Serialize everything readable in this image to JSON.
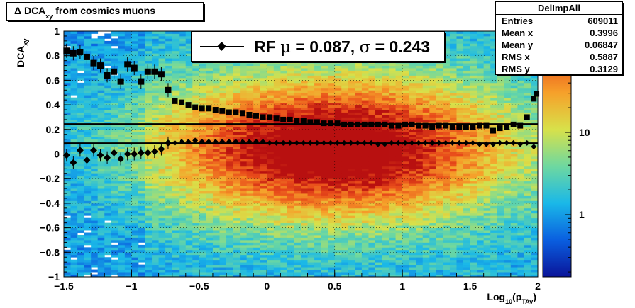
{
  "title": {
    "prefix": "Δ DCA",
    "sub": "xy",
    "suffix": " from cosmics muons"
  },
  "stats": {
    "name": "DelImpAll",
    "rows": [
      {
        "label": "Entries",
        "value": "609011"
      },
      {
        "label": "Mean x",
        "value": "0.3996"
      },
      {
        "label": "Mean y",
        "value": "0.06847"
      },
      {
        "label": "RMS x",
        "value": "0.5887"
      },
      {
        "label": "RMS y",
        "value": "0.3129"
      }
    ]
  },
  "legend": {
    "text_rf": "RF ",
    "mu_sym": "μ",
    "text_eq1": " =  0.087, ",
    "sigma_sym": "σ",
    "text_eq2": " =   0.243"
  },
  "axes": {
    "ylabel_main": "DCA",
    "ylabel_sub": "xy",
    "xlabel_main": "Log",
    "xlabel_sub": "10",
    "xlabel_paren_open": "(p",
    "xlabel_psub": "TAv",
    "xlabel_paren_close": ")"
  },
  "chart_data": {
    "type": "heatmap",
    "xlim": [
      -1.5,
      2
    ],
    "ylim": [
      -1,
      1
    ],
    "x_ticks": [
      "−1.5",
      "−1",
      "−0.5",
      "0",
      "0.5",
      "1",
      "1.5",
      "2"
    ],
    "x_tick_values": [
      -1.5,
      -1,
      -0.5,
      0,
      0.5,
      1,
      1.5,
      2
    ],
    "y_ticks": [
      "−1",
      "−0.8",
      "−0.6",
      "−0.4",
      "−0.2",
      "0",
      "0.2",
      "0.4",
      "0.6",
      "0.8",
      "1"
    ],
    "y_tick_values": [
      -1,
      -0.8,
      -0.6,
      -0.4,
      -0.2,
      0,
      0.2,
      0.4,
      0.6,
      0.8,
      1
    ],
    "color_scale": "log",
    "color_ticks": [
      "1",
      "10"
    ],
    "color_tick_values": [
      1,
      10
    ],
    "grid": true,
    "density_center": {
      "x": 0.5,
      "y": 0.05
    },
    "mean_line_y": 0.087,
    "sigma_line_y": 0.243,
    "mean_points": {
      "x": [
        -1.48,
        -1.43,
        -1.38,
        -1.33,
        -1.28,
        -1.23,
        -1.18,
        -1.13,
        -1.08,
        -1.03,
        -0.98,
        -0.93,
        -0.88,
        -0.83,
        -0.78,
        -0.73,
        -0.68,
        -0.63,
        -0.58,
        -0.53,
        -0.48,
        -0.43,
        -0.38,
        -0.33,
        -0.28,
        -0.23,
        -0.18,
        -0.13,
        -0.08,
        -0.03,
        0.02,
        0.07,
        0.12,
        0.17,
        0.22,
        0.27,
        0.32,
        0.37,
        0.42,
        0.47,
        0.52,
        0.57,
        0.62,
        0.67,
        0.72,
        0.77,
        0.82,
        0.87,
        0.92,
        0.97,
        1.02,
        1.07,
        1.12,
        1.17,
        1.22,
        1.27,
        1.32,
        1.37,
        1.42,
        1.47,
        1.52,
        1.57,
        1.62,
        1.67,
        1.72,
        1.77,
        1.82,
        1.87,
        1.92,
        1.97
      ],
      "y": [
        -0.01,
        -0.07,
        0.03,
        -0.05,
        0.03,
        -0.01,
        -0.03,
        0.01,
        -0.04,
        0.0,
        0.0,
        0.01,
        0.01,
        0.02,
        0.04,
        0.09,
        0.09,
        0.1,
        0.1,
        0.11,
        0.1,
        0.1,
        0.1,
        0.1,
        0.1,
        0.1,
        0.1,
        0.1,
        0.1,
        0.1,
        0.09,
        0.09,
        0.09,
        0.09,
        0.09,
        0.09,
        0.09,
        0.09,
        0.09,
        0.09,
        0.09,
        0.09,
        0.09,
        0.09,
        0.09,
        0.09,
        0.08,
        0.08,
        0.09,
        0.09,
        0.09,
        0.09,
        0.09,
        0.09,
        0.09,
        0.09,
        0.09,
        0.09,
        0.09,
        0.09,
        0.09,
        0.08,
        0.08,
        0.08,
        0.09,
        0.09,
        0.09,
        0.08,
        0.09,
        0.06
      ]
    },
    "sigma_points": {
      "x": [
        -1.48,
        -1.43,
        -1.38,
        -1.33,
        -1.28,
        -1.23,
        -1.18,
        -1.13,
        -1.08,
        -1.03,
        -0.98,
        -0.93,
        -0.88,
        -0.83,
        -0.78,
        -0.73,
        -0.68,
        -0.63,
        -0.58,
        -0.53,
        -0.48,
        -0.43,
        -0.38,
        -0.33,
        -0.28,
        -0.23,
        -0.18,
        -0.13,
        -0.08,
        -0.03,
        0.02,
        0.07,
        0.12,
        0.17,
        0.22,
        0.27,
        0.32,
        0.37,
        0.42,
        0.47,
        0.52,
        0.57,
        0.62,
        0.67,
        0.72,
        0.77,
        0.82,
        0.87,
        0.92,
        0.97,
        1.02,
        1.07,
        1.12,
        1.17,
        1.22,
        1.27,
        1.32,
        1.37,
        1.42,
        1.47,
        1.52,
        1.57,
        1.62,
        1.67,
        1.72,
        1.77,
        1.82,
        1.87,
        1.92,
        1.97
      ],
      "y": [
        0.84,
        0.82,
        0.83,
        0.79,
        0.74,
        0.72,
        0.64,
        0.67,
        0.59,
        0.73,
        0.7,
        0.59,
        0.67,
        0.67,
        0.65,
        0.52,
        0.43,
        0.42,
        0.4,
        0.38,
        0.37,
        0.37,
        0.36,
        0.35,
        0.34,
        0.34,
        0.33,
        0.32,
        0.31,
        0.3,
        0.3,
        0.29,
        0.28,
        0.28,
        0.27,
        0.27,
        0.26,
        0.26,
        0.25,
        0.25,
        0.25,
        0.24,
        0.24,
        0.24,
        0.24,
        0.24,
        0.24,
        0.24,
        0.23,
        0.23,
        0.24,
        0.24,
        0.23,
        0.23,
        0.22,
        0.23,
        0.23,
        0.22,
        0.22,
        0.22,
        0.22,
        0.23,
        0.23,
        0.19,
        0.21,
        0.22,
        0.24,
        0.23,
        0.3,
        0.45
      ]
    },
    "end_points": {
      "x": [
        1.99
      ],
      "y": [
        0.49
      ]
    }
  }
}
